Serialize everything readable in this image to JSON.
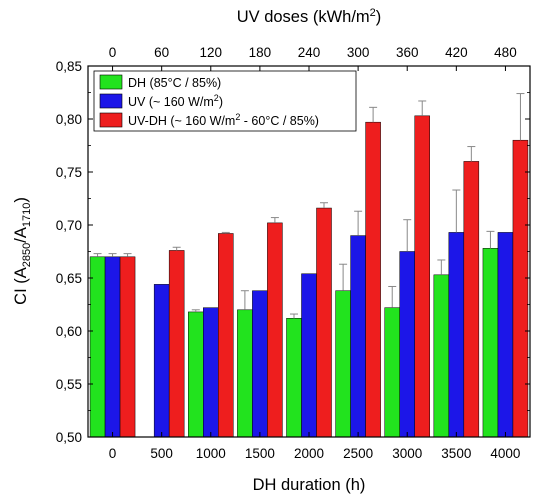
{
  "chart_data": {
    "type": "bar",
    "categories": [
      "0",
      "500",
      "1000",
      "1500",
      "2000",
      "2500",
      "3000",
      "3500",
      "4000"
    ],
    "top_axis": {
      "label": "UV doses (kWh/m²)",
      "ticks": [
        "0",
        "60",
        "120",
        "180",
        "240",
        "300",
        "360",
        "420",
        "480"
      ]
    },
    "xlabel": "DH duration (h)",
    "ylabel": "CI (A2850/A1710)",
    "ylim": [
      0.5,
      0.85
    ],
    "yticks": [
      "0,50",
      "0,55",
      "0,60",
      "0,65",
      "0,70",
      "0,75",
      "0,80",
      "0,85"
    ],
    "yticks_values": [
      0.5,
      0.55,
      0.6,
      0.65,
      0.7,
      0.75,
      0.8,
      0.85
    ],
    "legend_position": "top-left",
    "grid": false,
    "series": [
      {
        "name": "DH (85°C / 85%)",
        "color": "#22e31e",
        "values": [
          0.67,
          null,
          0.618,
          0.62,
          0.612,
          0.638,
          0.622,
          0.653,
          0.678
        ],
        "errors": [
          0.003,
          null,
          0.002,
          0.018,
          0.004,
          0.025,
          0.02,
          0.014,
          0.016
        ]
      },
      {
        "name": "UV (~ 160 W/m²)",
        "color": "#1c16e8",
        "values": [
          0.67,
          0.644,
          0.622,
          0.638,
          0.654,
          0.69,
          0.675,
          0.693,
          0.693
        ],
        "errors": [
          0.003,
          null,
          null,
          null,
          null,
          0.023,
          0.03,
          0.04,
          null
        ]
      },
      {
        "name": "UV-DH (~ 160 W/m² - 60°C / 85%)",
        "color": "#ee1e1e",
        "values": [
          0.67,
          0.676,
          0.692,
          0.702,
          0.716,
          0.797,
          0.803,
          0.76,
          0.78
        ],
        "errors": [
          0.003,
          0.003,
          0.001,
          0.005,
          0.005,
          0.014,
          0.014,
          0.014,
          0.044
        ]
      }
    ]
  }
}
